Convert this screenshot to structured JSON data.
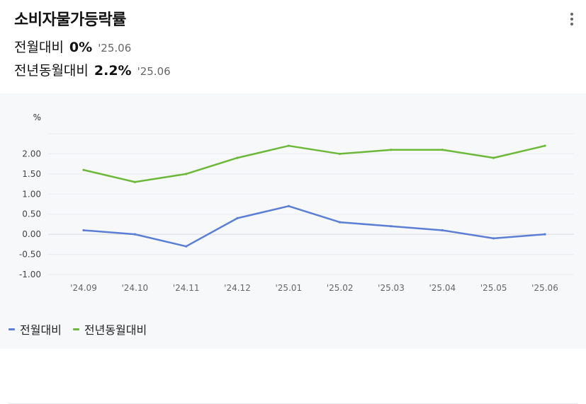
{
  "header": {
    "title": "소비자물가등락률",
    "mom_label": "전월대비",
    "mom_value": "0%",
    "mom_date": "'25.06",
    "yoy_label": "전년동월대비",
    "yoy_value": "2.2%",
    "yoy_date": "'25.06",
    "more_icon": "more-vertical-icon"
  },
  "chart_data": {
    "type": "line",
    "title": "",
    "ylabel": "%",
    "xlabel": "",
    "categories": [
      "'24.09",
      "'24.10",
      "'24.11",
      "'24.12",
      "'25.01",
      "'25.02",
      "'25.03",
      "'25.04",
      "'25.05",
      "'25.06"
    ],
    "yticks": [
      "2.00",
      "1.50",
      "1.00",
      "0.50",
      "0.00",
      "-0.50",
      "-1.00"
    ],
    "ylim": [
      -1.0,
      2.5
    ],
    "grid": true,
    "legend_position": "bottom-left",
    "series": [
      {
        "name": "전월대비",
        "color": "#5b7fd6",
        "values": [
          0.1,
          0.0,
          -0.3,
          0.4,
          0.7,
          0.3,
          0.2,
          0.1,
          -0.1,
          0.0
        ]
      },
      {
        "name": "전년동월대비",
        "color": "#6cb93a",
        "values": [
          1.6,
          1.3,
          1.5,
          1.9,
          2.2,
          2.0,
          2.1,
          2.1,
          1.9,
          2.2
        ]
      }
    ]
  }
}
